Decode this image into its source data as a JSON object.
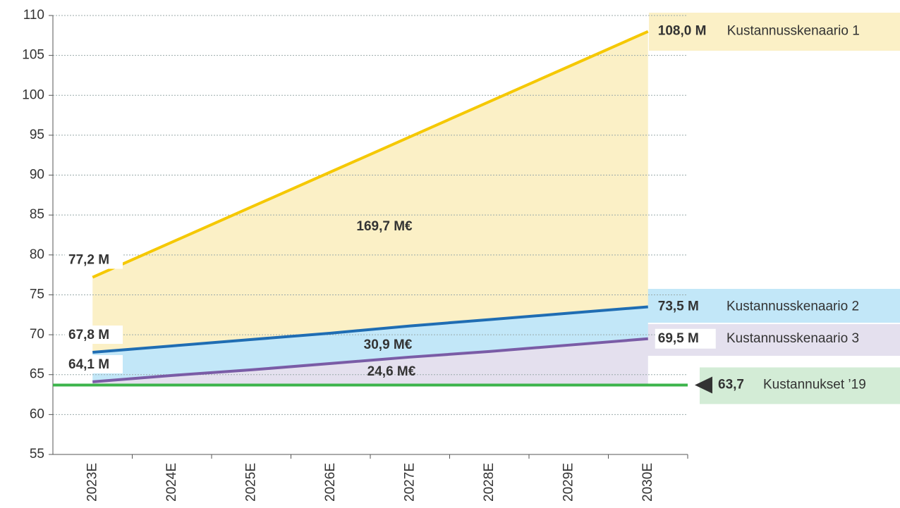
{
  "chart_data": {
    "type": "line",
    "categories": [
      "2023E",
      "2024E",
      "2025E",
      "2026E",
      "2027E",
      "2028E",
      "2029E",
      "2030E"
    ],
    "series": [
      {
        "name": "Kustannusskenaario 1",
        "color": "#f5c800",
        "fill": "#fbf0c6",
        "values": [
          77.2,
          81.6,
          86.0,
          90.4,
          94.8,
          99.2,
          103.6,
          108.0
        ],
        "value_labels": [
          "77,2 M",
          null,
          null,
          null,
          null,
          null,
          null,
          "108,0 M"
        ]
      },
      {
        "name": "Kustannusskenaario 2",
        "color": "#1f6db3",
        "fill": "#c2e7f8",
        "values": [
          67.8,
          68.6,
          69.4,
          70.2,
          71.1,
          71.9,
          72.7,
          73.5
        ],
        "value_labels": [
          "67,8 M",
          null,
          null,
          null,
          null,
          null,
          null,
          "73,5 M"
        ]
      },
      {
        "name": "Kustannusskenaario 3",
        "color": "#7a5ca6",
        "fill": "#e4e0ee",
        "values": [
          64.1,
          64.9,
          65.6,
          66.4,
          67.2,
          67.9,
          68.7,
          69.5
        ],
        "value_labels": [
          "64,1 M",
          null,
          null,
          null,
          null,
          null,
          null,
          "69,5 M"
        ]
      }
    ],
    "reference_line": {
      "name": "Kustannukset ’19",
      "value": 63.7,
      "label": "63,7",
      "color": "#3cb44b",
      "fill": "#d3ecd6"
    },
    "annotations": [
      "169,7 M€",
      "30,9 M€",
      "24,6 M€"
    ],
    "ylim": [
      55,
      110
    ],
    "yticks": [
      55,
      60,
      65,
      70,
      75,
      80,
      85,
      90,
      95,
      100,
      105,
      110
    ],
    "grid": true
  }
}
